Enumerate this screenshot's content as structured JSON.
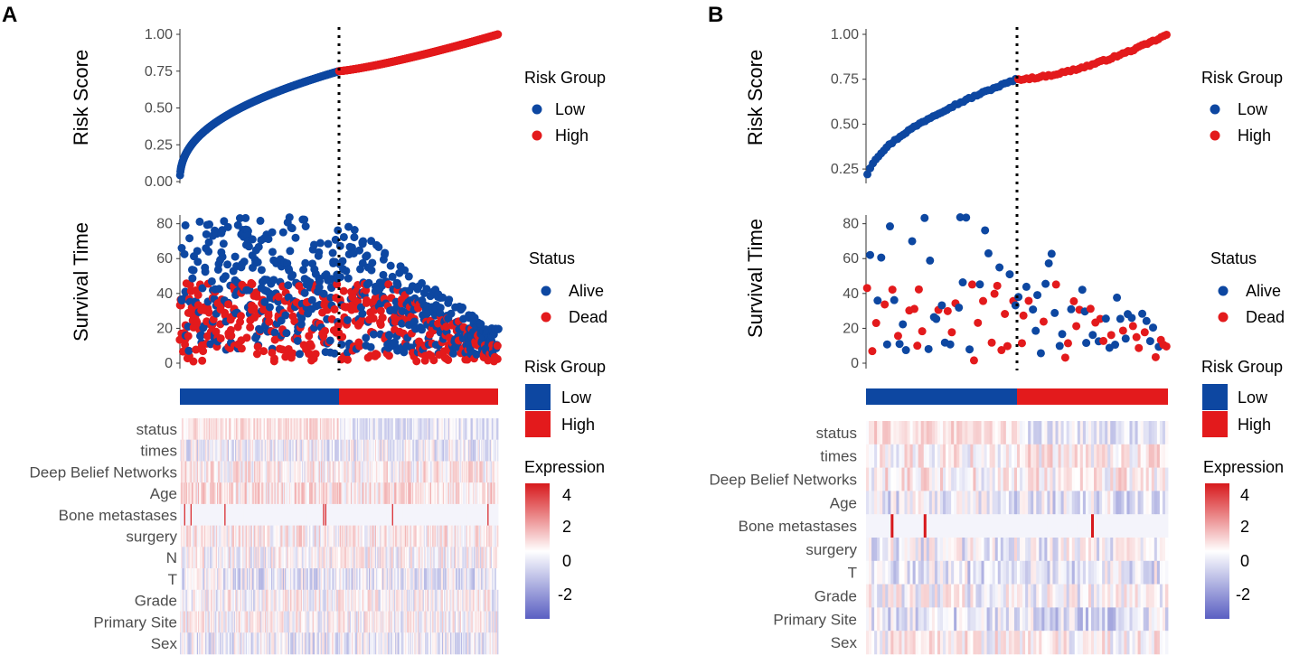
{
  "colors": {
    "low": "#0d47a1",
    "high": "#e31a1c",
    "alive": "#0d47a1",
    "dead": "#e31a1c",
    "expr_low": "#5a5fc2",
    "expr_mid": "#ffffff",
    "expr_high": "#d7191c"
  },
  "legends": {
    "risk_group_title": "Risk Group",
    "low_label": "Low",
    "high_label": "High",
    "status_title": "Status",
    "alive_label": "Alive",
    "dead_label": "Dead",
    "expression_title": "Expression",
    "expression_ticks": [
      "4",
      "2",
      "0",
      "-2"
    ]
  },
  "chart_data": [
    {
      "panel": "A",
      "type": "scatter",
      "title": "Risk Score",
      "ylabel": "Risk Score",
      "ylim": [
        0,
        1
      ],
      "yticks": [
        "0.00",
        "0.25",
        "0.50",
        "0.75",
        "1.00"
      ],
      "n_samples": 900,
      "cutoff_fraction": 0.5,
      "cutoff_score": 0.75,
      "survival": {
        "ylabel": "Survival Time",
        "ylim": [
          0,
          85
        ],
        "yticks": [
          "0",
          "20",
          "40",
          "60",
          "80"
        ],
        "max_time": 84
      },
      "heatmap": {
        "type": "heatmap",
        "rows": [
          "status",
          "times",
          "Deep Belief Networks",
          "Age",
          "Bone metastases",
          "surgery",
          "N",
          "T",
          "Grade",
          "Primary Site",
          "Sex"
        ],
        "value_range": [
          -3,
          4.5
        ]
      }
    },
    {
      "panel": "B",
      "type": "scatter",
      "title": "Risk Score",
      "ylabel": "Risk Score",
      "ylim": [
        0.18,
        1
      ],
      "yticks": [
        "0.25",
        "0.50",
        "0.75",
        "1.00"
      ],
      "n_samples": 110,
      "cutoff_fraction": 0.5,
      "cutoff_score": 0.75,
      "survival": {
        "ylabel": "Survival Time",
        "ylim": [
          0,
          85
        ],
        "yticks": [
          "0",
          "20",
          "40",
          "60",
          "80"
        ],
        "max_time": 84
      },
      "heatmap": {
        "type": "heatmap",
        "rows": [
          "status",
          "times",
          "Deep Belief Networks",
          "Age",
          "Bone metastases",
          "surgery",
          "T",
          "Grade",
          "Primary Site",
          "Sex"
        ],
        "value_range": [
          -3,
          4.5
        ]
      }
    }
  ],
  "panel_labels": [
    "A",
    "B"
  ]
}
